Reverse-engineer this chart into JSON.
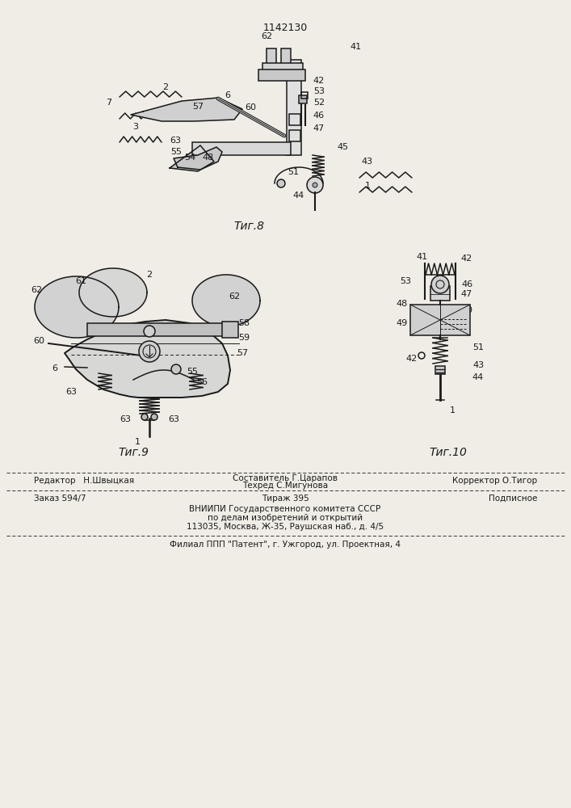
{
  "patent_number": "1142130",
  "bg_color": "#f0ede6",
  "line_color": "#1a1a1a",
  "fig8_caption": "Τиг.8",
  "fig9_caption": "Τиг.9",
  "fig10_caption": "Τиг.10",
  "footer_lines": [
    "Составитель Г.Царапов",
    "Техред С.Мигунова"
  ],
  "footer_left": "Редактор   Н.Швыцкая",
  "footer_right": "Корректор О.Тигор",
  "footer2_left": "Заказ 594/7",
  "footer2_mid": "Тираж 395",
  "footer2_right": "Подписное",
  "vnipi_line1": "ВНИИПИ Государственного комитета СССР",
  "vnipi_line2": "по делам изобретений и открытий",
  "vnipi_line3": "113035, Москва, Ж-35, Раушская наб., д. 4/5",
  "filial_line": "Филиал ППП \"Патент\", г. Ужгород, ул. Проектная, 4"
}
